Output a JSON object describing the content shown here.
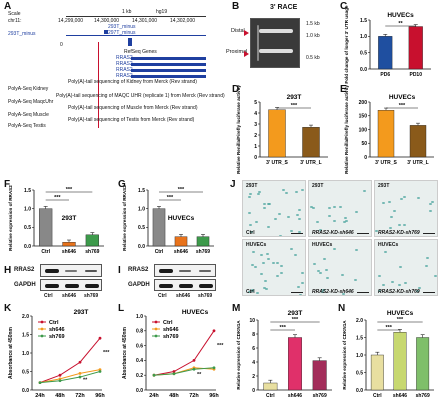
{
  "panels": {
    "A": {
      "label": "A",
      "scale": "Scale",
      "chr": "chr11:",
      "scale_kb": "1 kb",
      "genome": "hg19",
      "coords": [
        "14,299,000",
        "14,300,000",
        "14,301,000",
        "14,302,000"
      ],
      "track_293t_minus": "293T_minus",
      "track_297t_minus": "297T_minus",
      "track_293t_minus_left": "293T_minus",
      "value_0": "0",
      "refseq": "RefSeq Genes",
      "genes": [
        "RRAS2",
        "RRAS2",
        "RRAS2",
        "RRAS2"
      ],
      "polya_kidney": "PolyA-Seq Kidney",
      "polya_maqc": "PolyA-Seq MaqcUhr",
      "polya_muscle": "PolyA-Seq Muscle",
      "polya_testis": "PolyA-Seq Testis",
      "desc_kidney": "Poly(A)-tail sequencing of Kidney from Merck (Rev strand)",
      "desc_maqc": "Poly(A)-tail sequencing of MAQC UHR (replicate 1) from Merck (Rev strand)",
      "desc_muscle": "Poly(A)-tail sequencing of Muscle from Merck (Rev strand)",
      "desc_testis": "Poly(A)-tail sequencing of Testis from Merck (Rev strand)"
    },
    "B": {
      "label": "B",
      "title": "3' RACE",
      "distal": "Distal",
      "proximal": "Proximal",
      "sizes": [
        "1.5 kb",
        "1.0 kb",
        "0.5 kb"
      ]
    },
    "C": {
      "label": "C",
      "title": "HUVECs",
      "ylabel": "Fold change of longer 3' UTR usage",
      "sig": "**",
      "chart_data": {
        "type": "bar",
        "categories": [
          "PD6",
          "PD10"
        ],
        "values": [
          1.0,
          1.3
        ],
        "ylim": [
          0,
          1.5
        ],
        "yticks": [
          "0.0",
          "0.5",
          "1.0",
          "1.5"
        ],
        "colors": [
          "#1f4fa0",
          "#c8102e"
        ]
      }
    },
    "D": {
      "label": "D",
      "title": "293T",
      "ylabel": "Relative Renilla/Firefly luciferase activity",
      "sig": "***",
      "chart_data": {
        "type": "bar",
        "categories": [
          "3' UTR_S",
          "3' UTR_L"
        ],
        "values": [
          4.3,
          2.7
        ],
        "ylim": [
          0,
          5
        ],
        "yticks": [
          "0",
          "1",
          "2",
          "3",
          "4",
          "5"
        ],
        "colors": [
          "#f39a1d",
          "#8a5a1a"
        ]
      }
    },
    "E": {
      "label": "E",
      "title": "HUVECs",
      "ylabel": "Relative Renilla/Firefly luciferase activity",
      "sig": "***",
      "chart_data": {
        "type": "bar",
        "categories": [
          "3' UTR_S",
          "3' UTR_L"
        ],
        "values": [
          170,
          115
        ],
        "ylim": [
          0,
          200
        ],
        "yticks": [
          "0",
          "50",
          "100",
          "150",
          "200"
        ],
        "colors": [
          "#f39a1d",
          "#8a5a1a"
        ]
      }
    },
    "F": {
      "label": "F",
      "title": "293T",
      "ylabel": "Relative expression of RRAS2",
      "sigs": [
        "***",
        "***"
      ],
      "chart_data": {
        "type": "bar",
        "categories": [
          "Ctrl",
          "sh646",
          "sh769"
        ],
        "values": [
          1.0,
          0.1,
          0.3
        ],
        "ylim": [
          0,
          1.5
        ],
        "yticks": [
          "0.0",
          "0.5",
          "1.0",
          "1.5"
        ],
        "colors": [
          "#888888",
          "#e8731c",
          "#3d9a4b"
        ]
      }
    },
    "G": {
      "label": "G",
      "title": "HUVECs",
      "ylabel": "Relative expression of RRAS2",
      "sigs": [
        "***",
        "***"
      ],
      "chart_data": {
        "type": "bar",
        "categories": [
          "Ctrl",
          "sh646",
          "sh769"
        ],
        "values": [
          1.0,
          0.25,
          0.25
        ],
        "ylim": [
          0,
          1.5
        ],
        "yticks": [
          "0.0",
          "0.5",
          "1.0",
          "1.5"
        ],
        "colors": [
          "#888888",
          "#e8731c",
          "#3d9a4b"
        ]
      }
    },
    "H": {
      "label": "H",
      "rows": [
        "RRAS2",
        "GAPDH"
      ],
      "lanes": [
        "Ctrl",
        "sh646",
        "sh769"
      ]
    },
    "I": {
      "label": "I",
      "rows": [
        "RRAS2",
        "GAPDH"
      ],
      "lanes": [
        "Ctrl",
        "sh646",
        "sh769"
      ]
    },
    "J": {
      "label": "J",
      "captions": [
        "293T",
        "293T",
        "293T",
        "HUVECs",
        "HUVECs",
        "HUVECs"
      ],
      "sub": [
        "Ctrl",
        "RRAS2-KD-sh646",
        "RRAS2-KD-sh769",
        "Ctrl",
        "RRAS2-KD-sh646",
        "RRAS2-KD-sh769"
      ]
    },
    "K": {
      "label": "K",
      "title": "293T",
      "ylabel": "Absorbance at 450nm",
      "legend": [
        "Ctrl",
        "sh646",
        "sh769"
      ],
      "sigs": [
        "***",
        "**"
      ],
      "chart_data": {
        "type": "line",
        "x": [
          "24h",
          "48h",
          "72h",
          "96h"
        ],
        "yticks": [
          "0.0",
          "0.5",
          "1.0",
          "1.5",
          "2.0"
        ],
        "ylim": [
          0,
          2.0
        ],
        "series": [
          {
            "name": "Ctrl",
            "values": [
              0.2,
              0.4,
              0.75,
              1.4
            ]
          },
          {
            "name": "sh646",
            "values": [
              0.2,
              0.3,
              0.45,
              0.55
            ]
          },
          {
            "name": "sh769",
            "values": [
              0.2,
              0.25,
              0.35,
              0.5
            ]
          }
        ]
      }
    },
    "L": {
      "label": "L",
      "title": "HUVECs",
      "ylabel": "Absorbance at 450nm",
      "legend": [
        "Ctrl",
        "sh646",
        "sh769"
      ],
      "sigs": [
        "***",
        "**"
      ],
      "chart_data": {
        "type": "line",
        "x": [
          "24h",
          "48h",
          "72h",
          "96h"
        ],
        "yticks": [
          "0.0",
          "0.2",
          "0.4",
          "0.6",
          "0.8",
          "1.0"
        ],
        "ylim": [
          0,
          1.0
        ],
        "series": [
          {
            "name": "Ctrl",
            "values": [
              0.2,
              0.25,
              0.4,
              0.8
            ]
          },
          {
            "name": "sh646",
            "values": [
              0.2,
              0.22,
              0.3,
              0.28
            ]
          },
          {
            "name": "sh769",
            "values": [
              0.2,
              0.22,
              0.28,
              0.3
            ]
          }
        ]
      }
    },
    "M": {
      "label": "M",
      "title": "293T",
      "ylabel": "Relative expression of CDKN1A",
      "sigs": [
        "***",
        "***"
      ],
      "chart_data": {
        "type": "bar",
        "categories": [
          "Ctrl",
          "sh646",
          "sh769"
        ],
        "values": [
          1.0,
          7.5,
          4.2
        ],
        "ylim": [
          0,
          10
        ],
        "yticks": [
          "0",
          "2",
          "4",
          "6",
          "8",
          "10"
        ],
        "colors": [
          "#e8dfa0",
          "#e0306a",
          "#a32d5a"
        ]
      }
    },
    "N": {
      "label": "N",
      "title": "HUVECs",
      "ylabel": "Relative expression of CDKN1A",
      "sigs": [
        "***",
        "***"
      ],
      "chart_data": {
        "type": "bar",
        "categories": [
          "Ctrl",
          "sh646",
          "sh769"
        ],
        "values": [
          1.0,
          1.65,
          1.5
        ],
        "ylim": [
          0,
          2.0
        ],
        "yticks": [
          "0.0",
          "0.5",
          "1.0",
          "1.5",
          "2.0"
        ],
        "colors": [
          "#e8dfa0",
          "#c7d870",
          "#7fbf6a"
        ]
      }
    }
  },
  "colors": {
    "ctrl_line": "#c8102e",
    "sh646_line": "#f39a1d",
    "sh769_line": "#3d9a4b",
    "blue_track": "#1f3fa0"
  }
}
